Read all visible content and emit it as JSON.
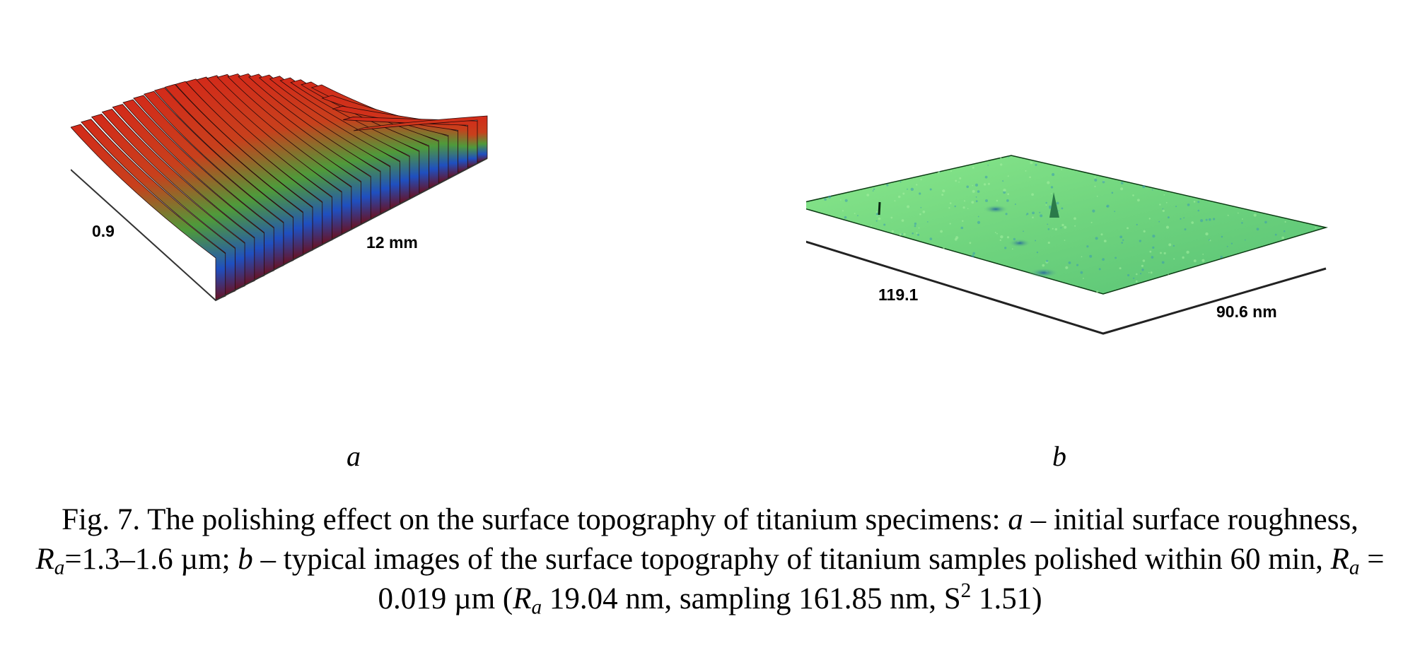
{
  "figure": {
    "panel_a": {
      "letter": "a",
      "axis_left": "0.9",
      "axis_right": "12 mm",
      "colors": [
        "#d32a1a",
        "#3f9a3a",
        "#1f4fc0",
        "#6a1020",
        "#d7f0d2"
      ]
    },
    "panel_b": {
      "letter": "b",
      "axis_left": "119.1",
      "axis_right": "90.6 nm",
      "colors": [
        "#7fe08a",
        "#3a9bb0",
        "#1a6e3a"
      ]
    },
    "caption": {
      "prefix": "Fig. 7. The polishing effect on the surface topography of titanium specimens: ",
      "a_letter": "a",
      "a_text": " – initial surface roughness, ",
      "r1": "R",
      "r1_sub": "a",
      "a_value": "=1.3–1.6 µm; ",
      "b_letter": "b",
      "b_text": " – typical images of the surface topography of titanium samples polished within 60 min, ",
      "r2": "R",
      "r2_sub": "a",
      "b_value": " = 0.019 µm (",
      "r3": "R",
      "r3_sub": "a",
      "tail": " 19.04 nm, sampling 161.85 nm, S",
      "tail_sup": "2",
      "tail_end": " 1.51)"
    }
  }
}
